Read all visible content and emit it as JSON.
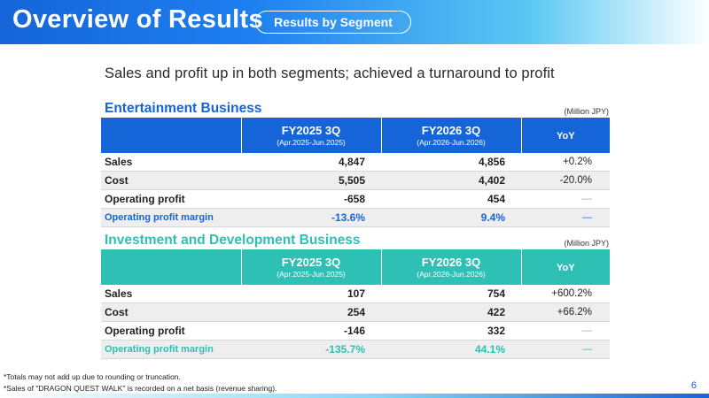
{
  "header": {
    "title": "Overview of Results",
    "pill": "Results by Segment"
  },
  "subtitle": "Sales and profit up in both segments; achieved a turnaround to profit",
  "colors": {
    "primary": "#1565d8",
    "secondary": "#2ec0b4"
  },
  "entertainment": {
    "title": "Entertainment Business",
    "unit": "(Million JPY)",
    "columns": [
      {
        "main": "FY2025 3Q",
        "sub": "(Apr.2025-Jun.2025)"
      },
      {
        "main": "FY2026 3Q",
        "sub": "(Apr.2026-Jun.2026)"
      },
      {
        "main": "YoY"
      }
    ],
    "rows": [
      {
        "label": "Sales",
        "a": "4,847",
        "b": "4,856",
        "yoy": "+0.2%"
      },
      {
        "label": "Cost",
        "a": "5,505",
        "b": "4,402",
        "yoy": "-20.0%"
      },
      {
        "label": "Operating profit",
        "a": "-658",
        "b": "454",
        "yoy": "—"
      },
      {
        "label": "Operating profit margin",
        "a": "-13.6%",
        "b": "9.4%",
        "yoy": "—"
      }
    ]
  },
  "investment": {
    "title": "Investment and Development Business",
    "unit": "(Million JPY)",
    "columns": [
      {
        "main": "FY2025 3Q",
        "sub": "(Apr.2025-Jun.2025)"
      },
      {
        "main": "FY2026 3Q",
        "sub": "(Apr.2026-Jun.2026)"
      },
      {
        "main": "YoY"
      }
    ],
    "rows": [
      {
        "label": "Sales",
        "a": "107",
        "b": "754",
        "yoy": "+600.2%"
      },
      {
        "label": "Cost",
        "a": "254",
        "b": "422",
        "yoy": "+66.2%"
      },
      {
        "label": "Operating profit",
        "a": "-146",
        "b": "332",
        "yoy": "—"
      },
      {
        "label": "Operating profit margin",
        "a": "-135.7%",
        "b": "44.1%",
        "yoy": "—"
      }
    ]
  },
  "notes": [
    "*Totals may not add up due to rounding or truncation.",
    "*Sales of \"DRAGON QUEST WALK\" is recorded on a net basis (revenue sharing)."
  ],
  "page_number": "6"
}
